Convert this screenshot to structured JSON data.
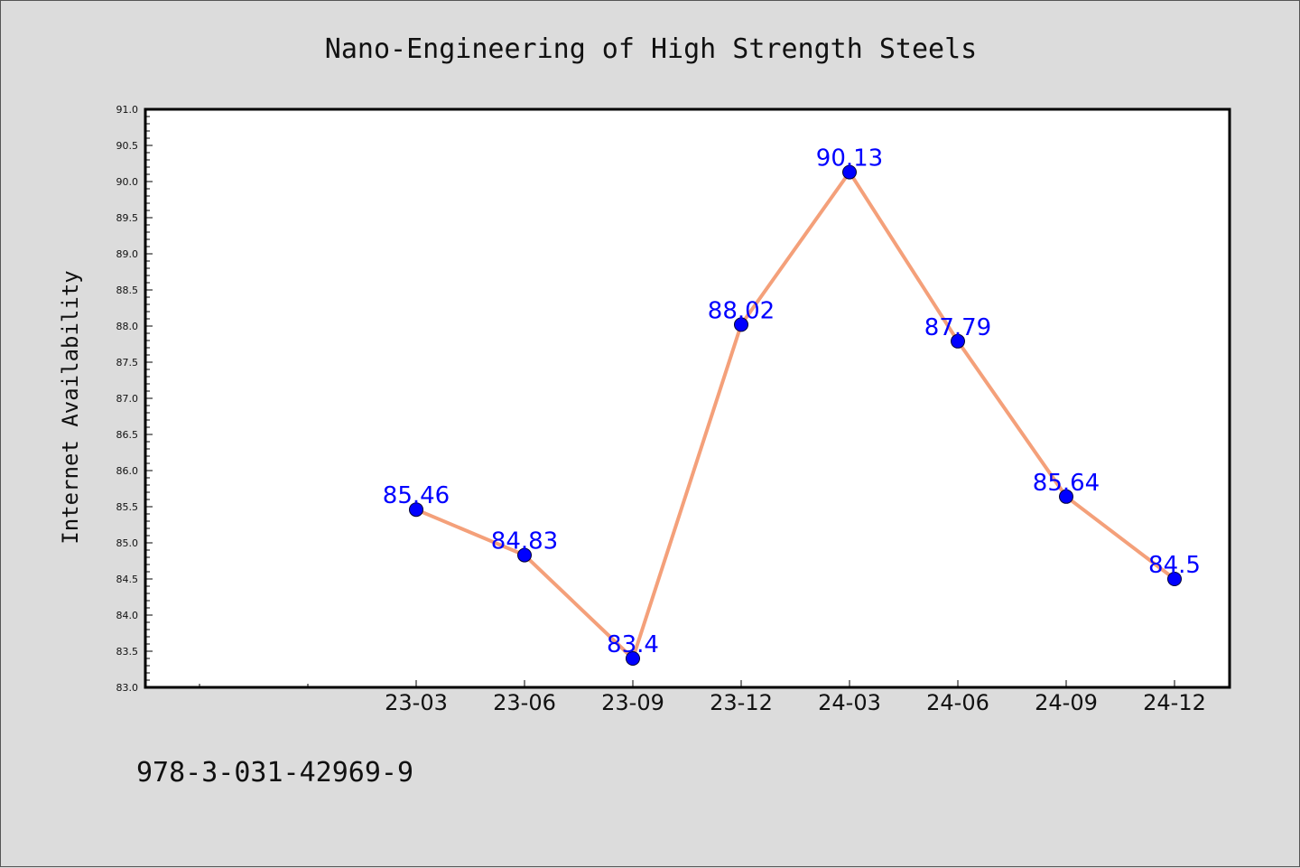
{
  "chart_data": {
    "type": "line",
    "title": "Nano-Engineering of High Strength Steels",
    "xlabel": "",
    "ylabel": "Internet Availability",
    "categories": [
      "23-03",
      "23-06",
      "23-09",
      "23-12",
      "24-03",
      "24-06",
      "24-09",
      "24-12"
    ],
    "values": [
      85.46,
      84.83,
      83.4,
      88.02,
      90.13,
      87.79,
      85.64,
      84.5
    ],
    "data_labels": [
      "85.46",
      "84.83",
      "83.4",
      "88.02",
      "90.13",
      "87.79",
      "85.64",
      "84.5"
    ],
    "ylim": [
      83.0,
      91.0
    ],
    "yticks": [
      "83.0",
      "83.5",
      "84.0",
      "84.5",
      "85.0",
      "85.5",
      "86.0",
      "86.5",
      "87.0",
      "87.5",
      "88.0",
      "88.5",
      "89.0",
      "89.5",
      "90.0",
      "90.5",
      "91.0"
    ],
    "grid": false,
    "legend": "none",
    "line_color": "#f4a07a",
    "marker_color": "#0000ff",
    "label_color": "#0000ff"
  },
  "footer_text": "978-3-031-42969-9"
}
